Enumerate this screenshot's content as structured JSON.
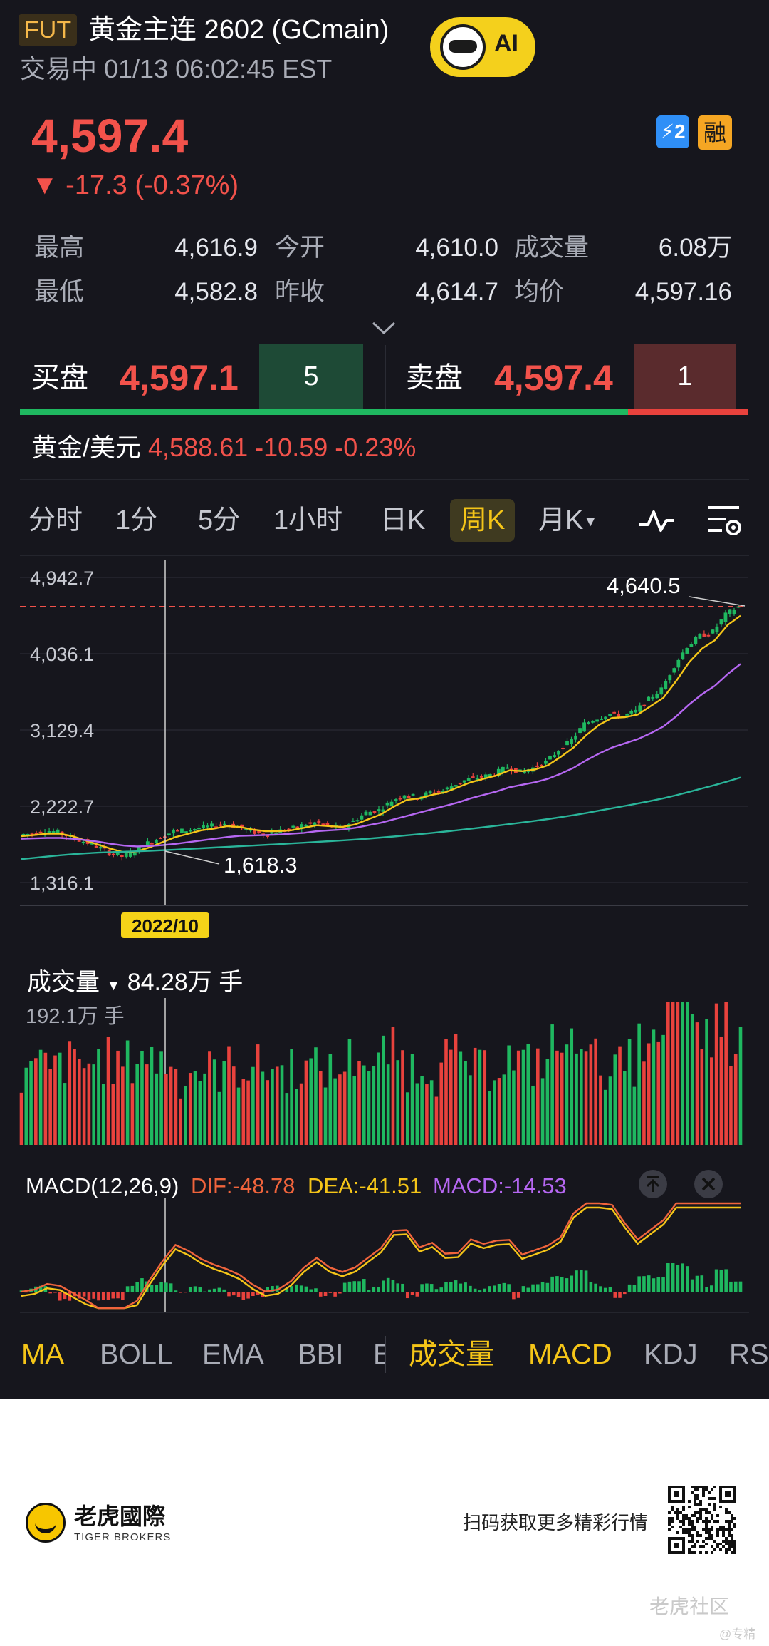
{
  "header": {
    "badge": "FUT",
    "title": "黄金主连 2602 (GCmain)",
    "status": "交易中 01/13 06:02:45 EST",
    "ai_label": "AI"
  },
  "quote": {
    "price": "4,597.4",
    "change": "▼ -17.3 (-0.37%)",
    "badge_lightning": "⚡2",
    "badge_margin": "融"
  },
  "stats": [
    {
      "label": "最高",
      "value": "4,616.9"
    },
    {
      "label": "今开",
      "value": "4,610.0"
    },
    {
      "label": "成交量",
      "value": "6.08万"
    },
    {
      "label": "最低",
      "value": "4,582.8"
    },
    {
      "label": "昨收",
      "value": "4,614.7"
    },
    {
      "label": "均价",
      "value": "4,597.16"
    }
  ],
  "orderbook": {
    "bid_label": "买盘",
    "bid_price": "4,597.1",
    "bid_size": "5",
    "ask_label": "卖盘",
    "ask_price": "4,597.4",
    "ask_size": "1",
    "bid_color": "#1fb860",
    "ask_color": "#e9423d"
  },
  "spot": {
    "label": "黄金/美元",
    "value": "4,588.61 -10.59 -0.23%"
  },
  "tabs": [
    {
      "label": "分时",
      "active": false
    },
    {
      "label": "1分",
      "active": false
    },
    {
      "label": "5分",
      "active": false
    },
    {
      "label": "1小时",
      "active": false
    },
    {
      "label": "日K",
      "active": false
    },
    {
      "label": "周K",
      "active": true
    },
    {
      "label": "月K",
      "active": false
    }
  ],
  "chart": {
    "y_ticks": [
      "4,942.7",
      "4,036.1",
      "3,129.4",
      "2,222.7",
      "1,316.1"
    ],
    "max_label": "4,640.5",
    "min_label": "1,618.3",
    "crosshair_date": "2022/10",
    "up_color": "#1fb860",
    "down_color": "#e9423d"
  },
  "volume": {
    "label": "成交量",
    "value": "84.28万 手",
    "max_label": "192.1万 手"
  },
  "macd": {
    "title": "MACD(12,26,9)",
    "dif": "DIF:-48.78",
    "dea": "DEA:-41.51",
    "macd": "MACD:-14.53"
  },
  "indicator_tabs": [
    {
      "label": "MA",
      "on": true
    },
    {
      "label": "BOLL",
      "on": false
    },
    {
      "label": "EMA",
      "on": false
    },
    {
      "label": "BBI",
      "on": false
    },
    {
      "label": "E",
      "on": false
    },
    {
      "label": "成交量",
      "on": true
    },
    {
      "label": "MACD",
      "on": true
    },
    {
      "label": "KDJ",
      "on": false
    },
    {
      "label": "RSI",
      "on": false
    }
  ],
  "footer": {
    "brand_cn": "老虎國際",
    "brand_en": "TIGER BROKERS",
    "scan_text": "扫码获取更多精彩行情",
    "community": "老虎社区",
    "watermark": "@专精"
  },
  "chart_data": {
    "type": "candlestick",
    "title": "",
    "xlabel": "",
    "ylabel": "",
    "ylim": [
      1316.1,
      4942.7
    ],
    "period": "weekly",
    "markers": {
      "high": 4640.5,
      "low": 1618.3,
      "current": 4597.4,
      "crosshair": "2022/10"
    },
    "series": [
      {
        "name": "close",
        "values": [
          1900,
          1910,
          1950,
          1930,
          1870,
          1820,
          1760,
          1690,
          1640,
          1700,
          1800,
          1870,
          1940,
          1950,
          1980,
          2000,
          2030,
          1990,
          1940,
          1900,
          1940,
          1960,
          2010,
          2040,
          2000,
          1980,
          2060,
          2160,
          2190,
          2300,
          2380,
          2340,
          2400,
          2420,
          2500,
          2560,
          2580,
          2620,
          2700,
          2640,
          2690,
          2760,
          2900,
          3020,
          3210,
          3280,
          3330,
          3300,
          3360,
          3500,
          3620,
          3900,
          4130,
          4250,
          4300,
          4500,
          4597
        ]
      },
      {
        "name": "ma_yellow",
        "values": [
          1880,
          1895,
          1910,
          1910,
          1880,
          1830,
          1780,
          1730,
          1690,
          1700,
          1750,
          1810,
          1870,
          1910,
          1950,
          1970,
          2000,
          1990,
          1960,
          1940,
          1940,
          1950,
          1980,
          2010,
          2000,
          1990,
          2020,
          2080,
          2140,
          2230,
          2310,
          2330,
          2370,
          2400,
          2460,
          2520,
          2560,
          2600,
          2660,
          2650,
          2670,
          2720,
          2820,
          2930,
          3080,
          3200,
          3280,
          3290,
          3320,
          3420,
          3520,
          3720,
          3940,
          4100,
          4200,
          4380,
          4490
        ]
      },
      {
        "name": "ma_purple",
        "values": [
          1850,
          1855,
          1860,
          1860,
          1850,
          1835,
          1815,
          1790,
          1770,
          1760,
          1765,
          1775,
          1790,
          1810,
          1830,
          1850,
          1870,
          1885,
          1890,
          1895,
          1900,
          1910,
          1920,
          1940,
          1950,
          1960,
          1980,
          2010,
          2040,
          2080,
          2120,
          2160,
          2200,
          2240,
          2280,
          2330,
          2370,
          2410,
          2460,
          2490,
          2520,
          2560,
          2620,
          2690,
          2780,
          2860,
          2930,
          2980,
          3030,
          3100,
          3180,
          3300,
          3440,
          3560,
          3660,
          3800,
          3920
        ]
      },
      {
        "name": "ma_teal",
        "values": [
          1610,
          1625,
          1640,
          1655,
          1668,
          1678,
          1686,
          1692,
          1697,
          1702,
          1708,
          1715,
          1722,
          1730,
          1738,
          1746,
          1754,
          1762,
          1770,
          1778,
          1786,
          1795,
          1804,
          1813,
          1822,
          1831,
          1841,
          1852,
          1864,
          1877,
          1891,
          1905,
          1920,
          1936,
          1952,
          1969,
          1987,
          2005,
          2024,
          2043,
          2063,
          2084,
          2106,
          2130,
          2156,
          2184,
          2212,
          2240,
          2268,
          2298,
          2330,
          2366,
          2406,
          2446,
          2486,
          2530,
          2576
        ]
      }
    ]
  }
}
